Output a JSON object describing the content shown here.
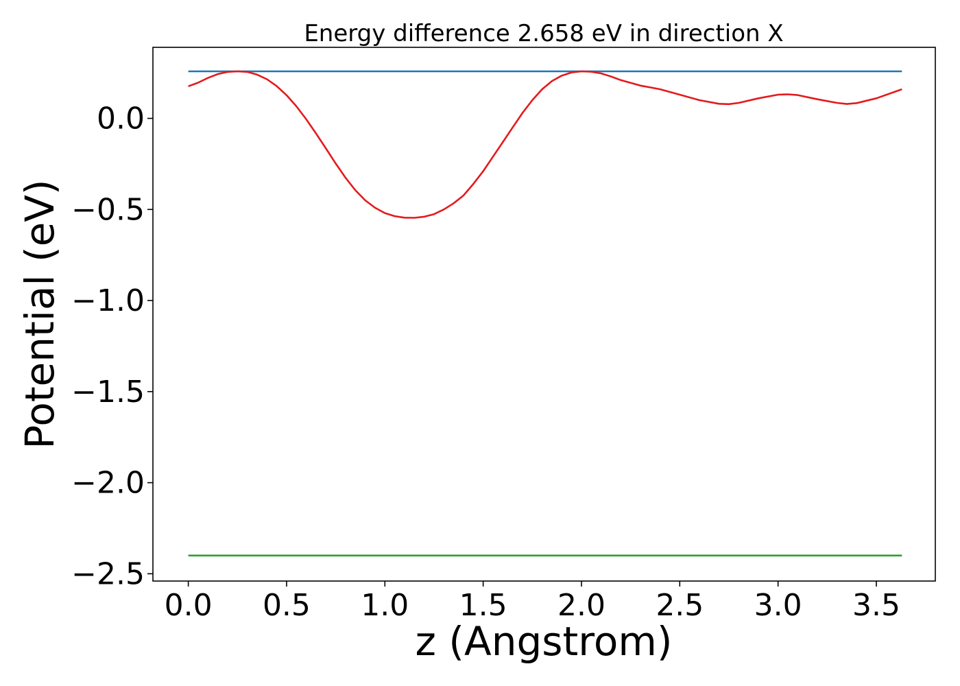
{
  "chart_data": {
    "type": "line",
    "title": "Energy difference 2.658 eV in direction X",
    "xlabel": "z (Angstrom)",
    "ylabel": "Potential (eV)",
    "xlim": [
      -0.18,
      3.8
    ],
    "ylim": [
      -2.54,
      0.39
    ],
    "xticks": [
      0.0,
      0.5,
      1.0,
      1.5,
      2.0,
      2.5,
      3.0,
      3.5
    ],
    "xtick_labels": [
      "0.0",
      "0.5",
      "1.0",
      "1.5",
      "2.0",
      "2.5",
      "3.0",
      "3.5"
    ],
    "yticks": [
      0.0,
      -0.5,
      -1.0,
      -1.5,
      -2.0,
      -2.5
    ],
    "ytick_labels": [
      "0.0",
      "−0.5",
      "−1.0",
      "−1.5",
      "−2.0",
      "−2.5"
    ],
    "grid": false,
    "series": [
      {
        "color": "#1f77b4",
        "x": [
          0.0,
          3.63
        ],
        "y": [
          0.258,
          0.258
        ]
      },
      {
        "color": "#2ca02c",
        "x": [
          0.0,
          3.63
        ],
        "y": [
          -2.4,
          -2.4
        ]
      },
      {
        "color": "#e31a1c",
        "x": [
          0.0,
          0.05,
          0.1,
          0.15,
          0.2,
          0.25,
          0.3,
          0.35,
          0.4,
          0.45,
          0.5,
          0.55,
          0.6,
          0.65,
          0.7,
          0.75,
          0.8,
          0.85,
          0.9,
          0.95,
          1.0,
          1.05,
          1.1,
          1.15,
          1.2,
          1.25,
          1.3,
          1.35,
          1.4,
          1.45,
          1.5,
          1.55,
          1.6,
          1.65,
          1.7,
          1.75,
          1.8,
          1.85,
          1.9,
          1.95,
          2.0,
          2.05,
          2.1,
          2.15,
          2.2,
          2.25,
          2.3,
          2.35,
          2.4,
          2.5,
          2.6,
          2.7,
          2.75,
          2.8,
          2.9,
          3.0,
          3.05,
          3.1,
          3.2,
          3.3,
          3.35,
          3.4,
          3.5,
          3.63
        ],
        "y": [
          0.176,
          0.196,
          0.222,
          0.243,
          0.255,
          0.258,
          0.255,
          0.24,
          0.215,
          0.177,
          0.127,
          0.066,
          -0.005,
          -0.083,
          -0.165,
          -0.248,
          -0.326,
          -0.395,
          -0.45,
          -0.491,
          -0.52,
          -0.537,
          -0.545,
          -0.546,
          -0.54,
          -0.526,
          -0.5,
          -0.466,
          -0.423,
          -0.36,
          -0.29,
          -0.21,
          -0.13,
          -0.05,
          0.03,
          0.1,
          0.16,
          0.205,
          0.235,
          0.252,
          0.258,
          0.256,
          0.247,
          0.23,
          0.21,
          0.195,
          0.18,
          0.17,
          0.16,
          0.13,
          0.1,
          0.08,
          0.078,
          0.085,
          0.11,
          0.13,
          0.132,
          0.128,
          0.105,
          0.085,
          0.079,
          0.084,
          0.11,
          0.16
        ]
      }
    ]
  }
}
